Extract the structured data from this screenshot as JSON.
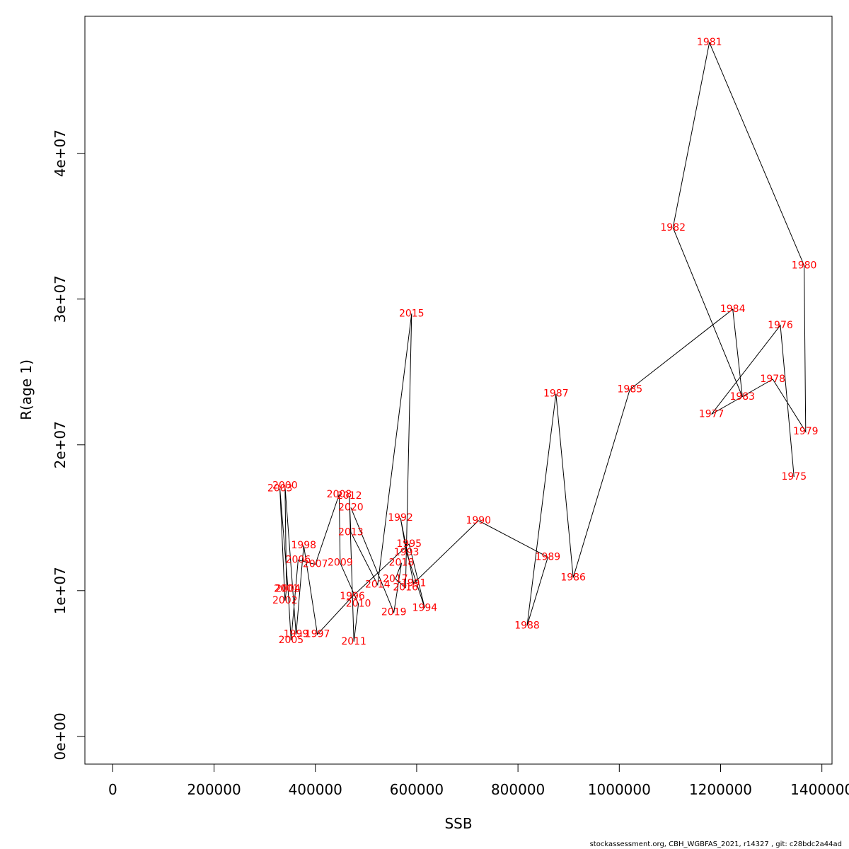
{
  "chart_data": {
    "type": "line",
    "title": "",
    "xlabel": "SSB",
    "ylabel": "R(age 1)",
    "xlim": [
      -55000,
      1420000
    ],
    "ylim": [
      -1900000,
      49400000
    ],
    "x_ticks": [
      0,
      200000,
      400000,
      600000,
      800000,
      1000000,
      1200000,
      1400000
    ],
    "x_tick_labels": [
      "0",
      "200000",
      "400000",
      "600000",
      "800000",
      "1000000",
      "1200000",
      "1400000"
    ],
    "y_ticks": [
      0,
      10000000,
      20000000,
      30000000,
      40000000
    ],
    "y_tick_labels": [
      "0e+00",
      "1e+07",
      "2e+07",
      "3e+07",
      "4e+07"
    ],
    "grid": false,
    "line_color": "#000000",
    "label_color": "#ff0000",
    "points": [
      {
        "year": "1975",
        "x": 1345000,
        "y": 17800000
      },
      {
        "year": "1976",
        "x": 1318000,
        "y": 28200000
      },
      {
        "year": "1977",
        "x": 1182000,
        "y": 22100000
      },
      {
        "year": "1978",
        "x": 1303000,
        "y": 24500000
      },
      {
        "year": "1979",
        "x": 1368000,
        "y": 20900000
      },
      {
        "year": "1980",
        "x": 1365000,
        "y": 32300000
      },
      {
        "year": "1981",
        "x": 1178000,
        "y": 47600000
      },
      {
        "year": "1982",
        "x": 1106000,
        "y": 34900000
      },
      {
        "year": "1983",
        "x": 1243000,
        "y": 23300000
      },
      {
        "year": "1984",
        "x": 1224000,
        "y": 29300000
      },
      {
        "year": "1985",
        "x": 1021000,
        "y": 23800000
      },
      {
        "year": "1986",
        "x": 909000,
        "y": 10900000
      },
      {
        "year": "1987",
        "x": 875000,
        "y": 23500000
      },
      {
        "year": "1988",
        "x": 818000,
        "y": 7600000
      },
      {
        "year": "1989",
        "x": 859000,
        "y": 12300000
      },
      {
        "year": "1990",
        "x": 722000,
        "y": 14800000
      },
      {
        "year": "1991",
        "x": 594000,
        "y": 10500000
      },
      {
        "year": "1992",
        "x": 568000,
        "y": 15000000
      },
      {
        "year": "1993",
        "x": 580000,
        "y": 12600000
      },
      {
        "year": "1994",
        "x": 616000,
        "y": 8800000
      },
      {
        "year": "1995",
        "x": 585000,
        "y": 13200000
      },
      {
        "year": "1996",
        "x": 473000,
        "y": 9600000
      },
      {
        "year": "1997",
        "x": 404000,
        "y": 7000000
      },
      {
        "year": "1998",
        "x": 377000,
        "y": 13100000
      },
      {
        "year": "1999",
        "x": 362000,
        "y": 7000000
      },
      {
        "year": "2000",
        "x": 340000,
        "y": 17200000
      },
      {
        "year": "2001",
        "x": 343000,
        "y": 10100000
      },
      {
        "year": "2002",
        "x": 340000,
        "y": 9300000
      },
      {
        "year": "2003",
        "x": 330000,
        "y": 17000000
      },
      {
        "year": "2004",
        "x": 346000,
        "y": 10100000
      },
      {
        "year": "2005",
        "x": 352000,
        "y": 6600000
      },
      {
        "year": "2006",
        "x": 366000,
        "y": 12100000
      },
      {
        "year": "2007",
        "x": 400000,
        "y": 11800000
      },
      {
        "year": "2008",
        "x": 447000,
        "y": 16600000
      },
      {
        "year": "2009",
        "x": 449000,
        "y": 11900000
      },
      {
        "year": "2010",
        "x": 485000,
        "y": 9100000
      },
      {
        "year": "2011",
        "x": 476000,
        "y": 6500000
      },
      {
        "year": "2012",
        "x": 467000,
        "y": 16500000
      },
      {
        "year": "2013",
        "x": 470000,
        "y": 14000000
      },
      {
        "year": "2014",
        "x": 523000,
        "y": 10400000
      },
      {
        "year": "2015",
        "x": 590000,
        "y": 29000000
      },
      {
        "year": "2016",
        "x": 578000,
        "y": 10200000
      },
      {
        "year": "2017",
        "x": 558000,
        "y": 10800000
      },
      {
        "year": "2018",
        "x": 570000,
        "y": 11900000
      },
      {
        "year": "2019",
        "x": 555000,
        "y": 8500000
      },
      {
        "year": "2020",
        "x": 470000,
        "y": 15700000
      }
    ]
  },
  "footer": {
    "text": "stockassessment.org, CBH_WGBFAS_2021, r14327 , git: c28bdc2a44ad"
  }
}
